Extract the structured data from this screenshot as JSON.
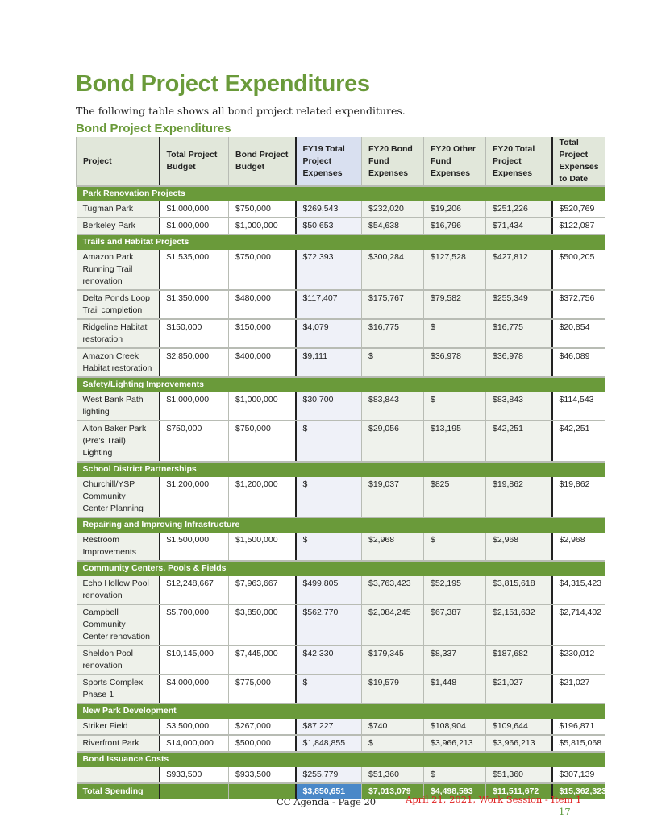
{
  "title": "Bond Project Expenditures",
  "intro": "The following table shows all bond project related expenditures.",
  "table_title": "Bond Project Expenditures",
  "columns": [
    "Project",
    "Total Project Budget",
    "Bond Project Budget",
    "FY19 Total Project Expenses",
    "FY20 Bond Fund Expenses",
    "FY20 Other Fund Expenses",
    "FY20 Total Project Expenses",
    "Total Project Expenses to Date"
  ],
  "groups": [
    {
      "name": "Park Renovation Projects",
      "rows": [
        [
          "Tugman Park",
          "$1,000,000",
          "$750,000",
          "$269,543",
          "$232,020",
          "$19,206",
          "$251,226",
          "$520,769"
        ],
        [
          "Berkeley Park",
          "$1,000,000",
          "$1,000,000",
          "$50,653",
          "$54,638",
          "$16,796",
          "$71,434",
          "$122,087"
        ]
      ]
    },
    {
      "name": "Trails and Habitat Projects",
      "rows": [
        [
          "Amazon Park Running Trail renovation",
          "$1,535,000",
          "$750,000",
          "$72,393",
          "$300,284",
          "$127,528",
          "$427,812",
          "$500,205"
        ],
        [
          "Delta Ponds Loop Trail completion",
          "$1,350,000",
          "$480,000",
          "$117,407",
          "$175,767",
          "$79,582",
          "$255,349",
          "$372,756"
        ],
        [
          "Ridgeline Habitat restoration",
          "$150,000",
          "$150,000",
          "$4,079",
          "$16,775",
          "$",
          "$16,775",
          "$20,854"
        ],
        [
          "Amazon Creek Habitat restoration",
          "$2,850,000",
          "$400,000",
          "$9,111",
          "$",
          "$36,978",
          "$36,978",
          "$46,089"
        ]
      ]
    },
    {
      "name": "Safety/Lighting Improvements",
      "rows": [
        [
          "West Bank Path lighting",
          "$1,000,000",
          "$1,000,000",
          "$30,700",
          "$83,843",
          "$",
          "$83,843",
          "$114,543"
        ],
        [
          "Alton Baker Park (Pre's Trail) Lighting",
          "$750,000",
          "$750,000",
          "$",
          "$29,056",
          "$13,195",
          "$42,251",
          "$42,251"
        ]
      ]
    },
    {
      "name": "School District Partnerships",
      "rows": [
        [
          "Churchill/YSP Community Center Planning",
          "$1,200,000",
          "$1,200,000",
          "$",
          "$19,037",
          "$825",
          "$19,862",
          "$19,862"
        ]
      ]
    },
    {
      "name": "Repairing and Improving Infrastructure",
      "rows": [
        [
          "Restroom Improvements",
          "$1,500,000",
          "$1,500,000",
          "$",
          "$2,968",
          "$",
          "$2,968",
          "$2,968"
        ]
      ]
    },
    {
      "name": "Community Centers, Pools & Fields",
      "rows": [
        [
          "Echo Hollow Pool renovation",
          "$12,248,667",
          "$7,963,667",
          "$499,805",
          "$3,763,423",
          "$52,195",
          "$3,815,618",
          "$4,315,423"
        ],
        [
          "Campbell Community Center renovation",
          "$5,700,000",
          "$3,850,000",
          "$562,770",
          "$2,084,245",
          "$67,387",
          "$2,151,632",
          "$2,714,402"
        ],
        [
          "Sheldon Pool renovation",
          "$10,145,000",
          "$7,445,000",
          "$42,330",
          "$179,345",
          "$8,337",
          "$187,682",
          "$230,012"
        ],
        [
          "Sports Complex Phase 1",
          "$4,000,000",
          "$775,000",
          "$",
          "$19,579",
          "$1,448",
          "$21,027",
          "$21,027"
        ]
      ]
    },
    {
      "name": "New Park Development",
      "rows": [
        [
          "Striker Field",
          "$3,500,000",
          "$267,000",
          "$87,227",
          "$740",
          "$108,904",
          "$109,644",
          "$196,871"
        ],
        [
          "Riverfront Park",
          "$14,000,000",
          "$500,000",
          "$1,848,855",
          "$",
          "$3,966,213",
          "$3,966,213",
          "$5,815,068"
        ]
      ]
    },
    {
      "name": "Bond Issuance Costs",
      "rows": [
        [
          "",
          "$933,500",
          "$933,500",
          "$255,779",
          "$51,360",
          "$",
          "$51,360",
          "$307,139"
        ]
      ]
    }
  ],
  "total": [
    "Total Spending",
    "",
    "",
    "$3,850,651",
    "$7,013,079",
    "$4,498,593",
    "$11,511,672",
    "$15,362,323"
  ],
  "footer": {
    "page": "CC Agenda - Page 20",
    "session": "April 21, 2021, Work Session - Item 1",
    "number": "17"
  },
  "colors": {
    "green": "#6a9a3a",
    "total_fy19": "#4a88c8"
  }
}
